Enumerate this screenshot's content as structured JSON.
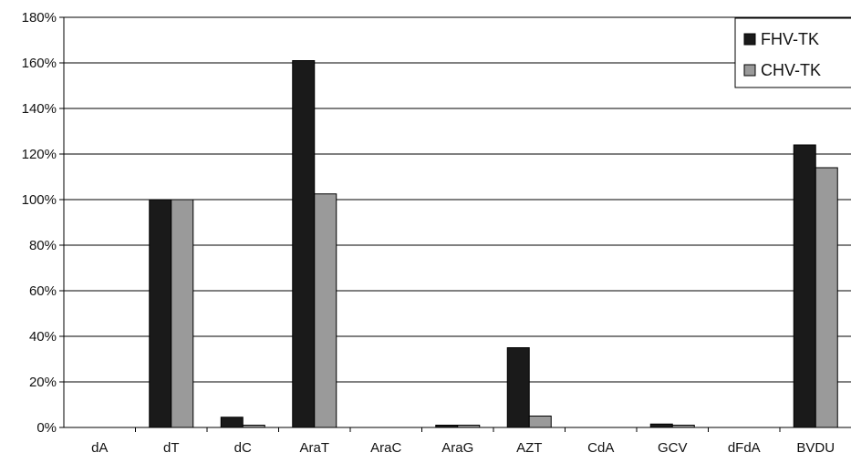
{
  "chart_data": {
    "type": "bar",
    "title": "",
    "xlabel": "",
    "ylabel": "",
    "ylim": [
      0,
      180
    ],
    "y_ticks": [
      "0%",
      "20%",
      "40%",
      "60%",
      "80%",
      "100%",
      "120%",
      "140%",
      "160%",
      "180%"
    ],
    "grid": true,
    "legend_position": "top-right",
    "categories": [
      "dA",
      "dT",
      "dC",
      "AraT",
      "AraC",
      "AraG",
      "AZT",
      "CdA",
      "GCV",
      "dFdA",
      "BVDU"
    ],
    "series": [
      {
        "name": "FHV-TK",
        "color": "#1a1a1a",
        "values": [
          0,
          100,
          4.5,
          161,
          0,
          1,
          35,
          0,
          1.5,
          0,
          124
        ]
      },
      {
        "name": "CHV-TK",
        "color": "#9a9a9a",
        "values": [
          0,
          100,
          1,
          102.5,
          0,
          1,
          5,
          0,
          1,
          0,
          114
        ]
      }
    ]
  }
}
